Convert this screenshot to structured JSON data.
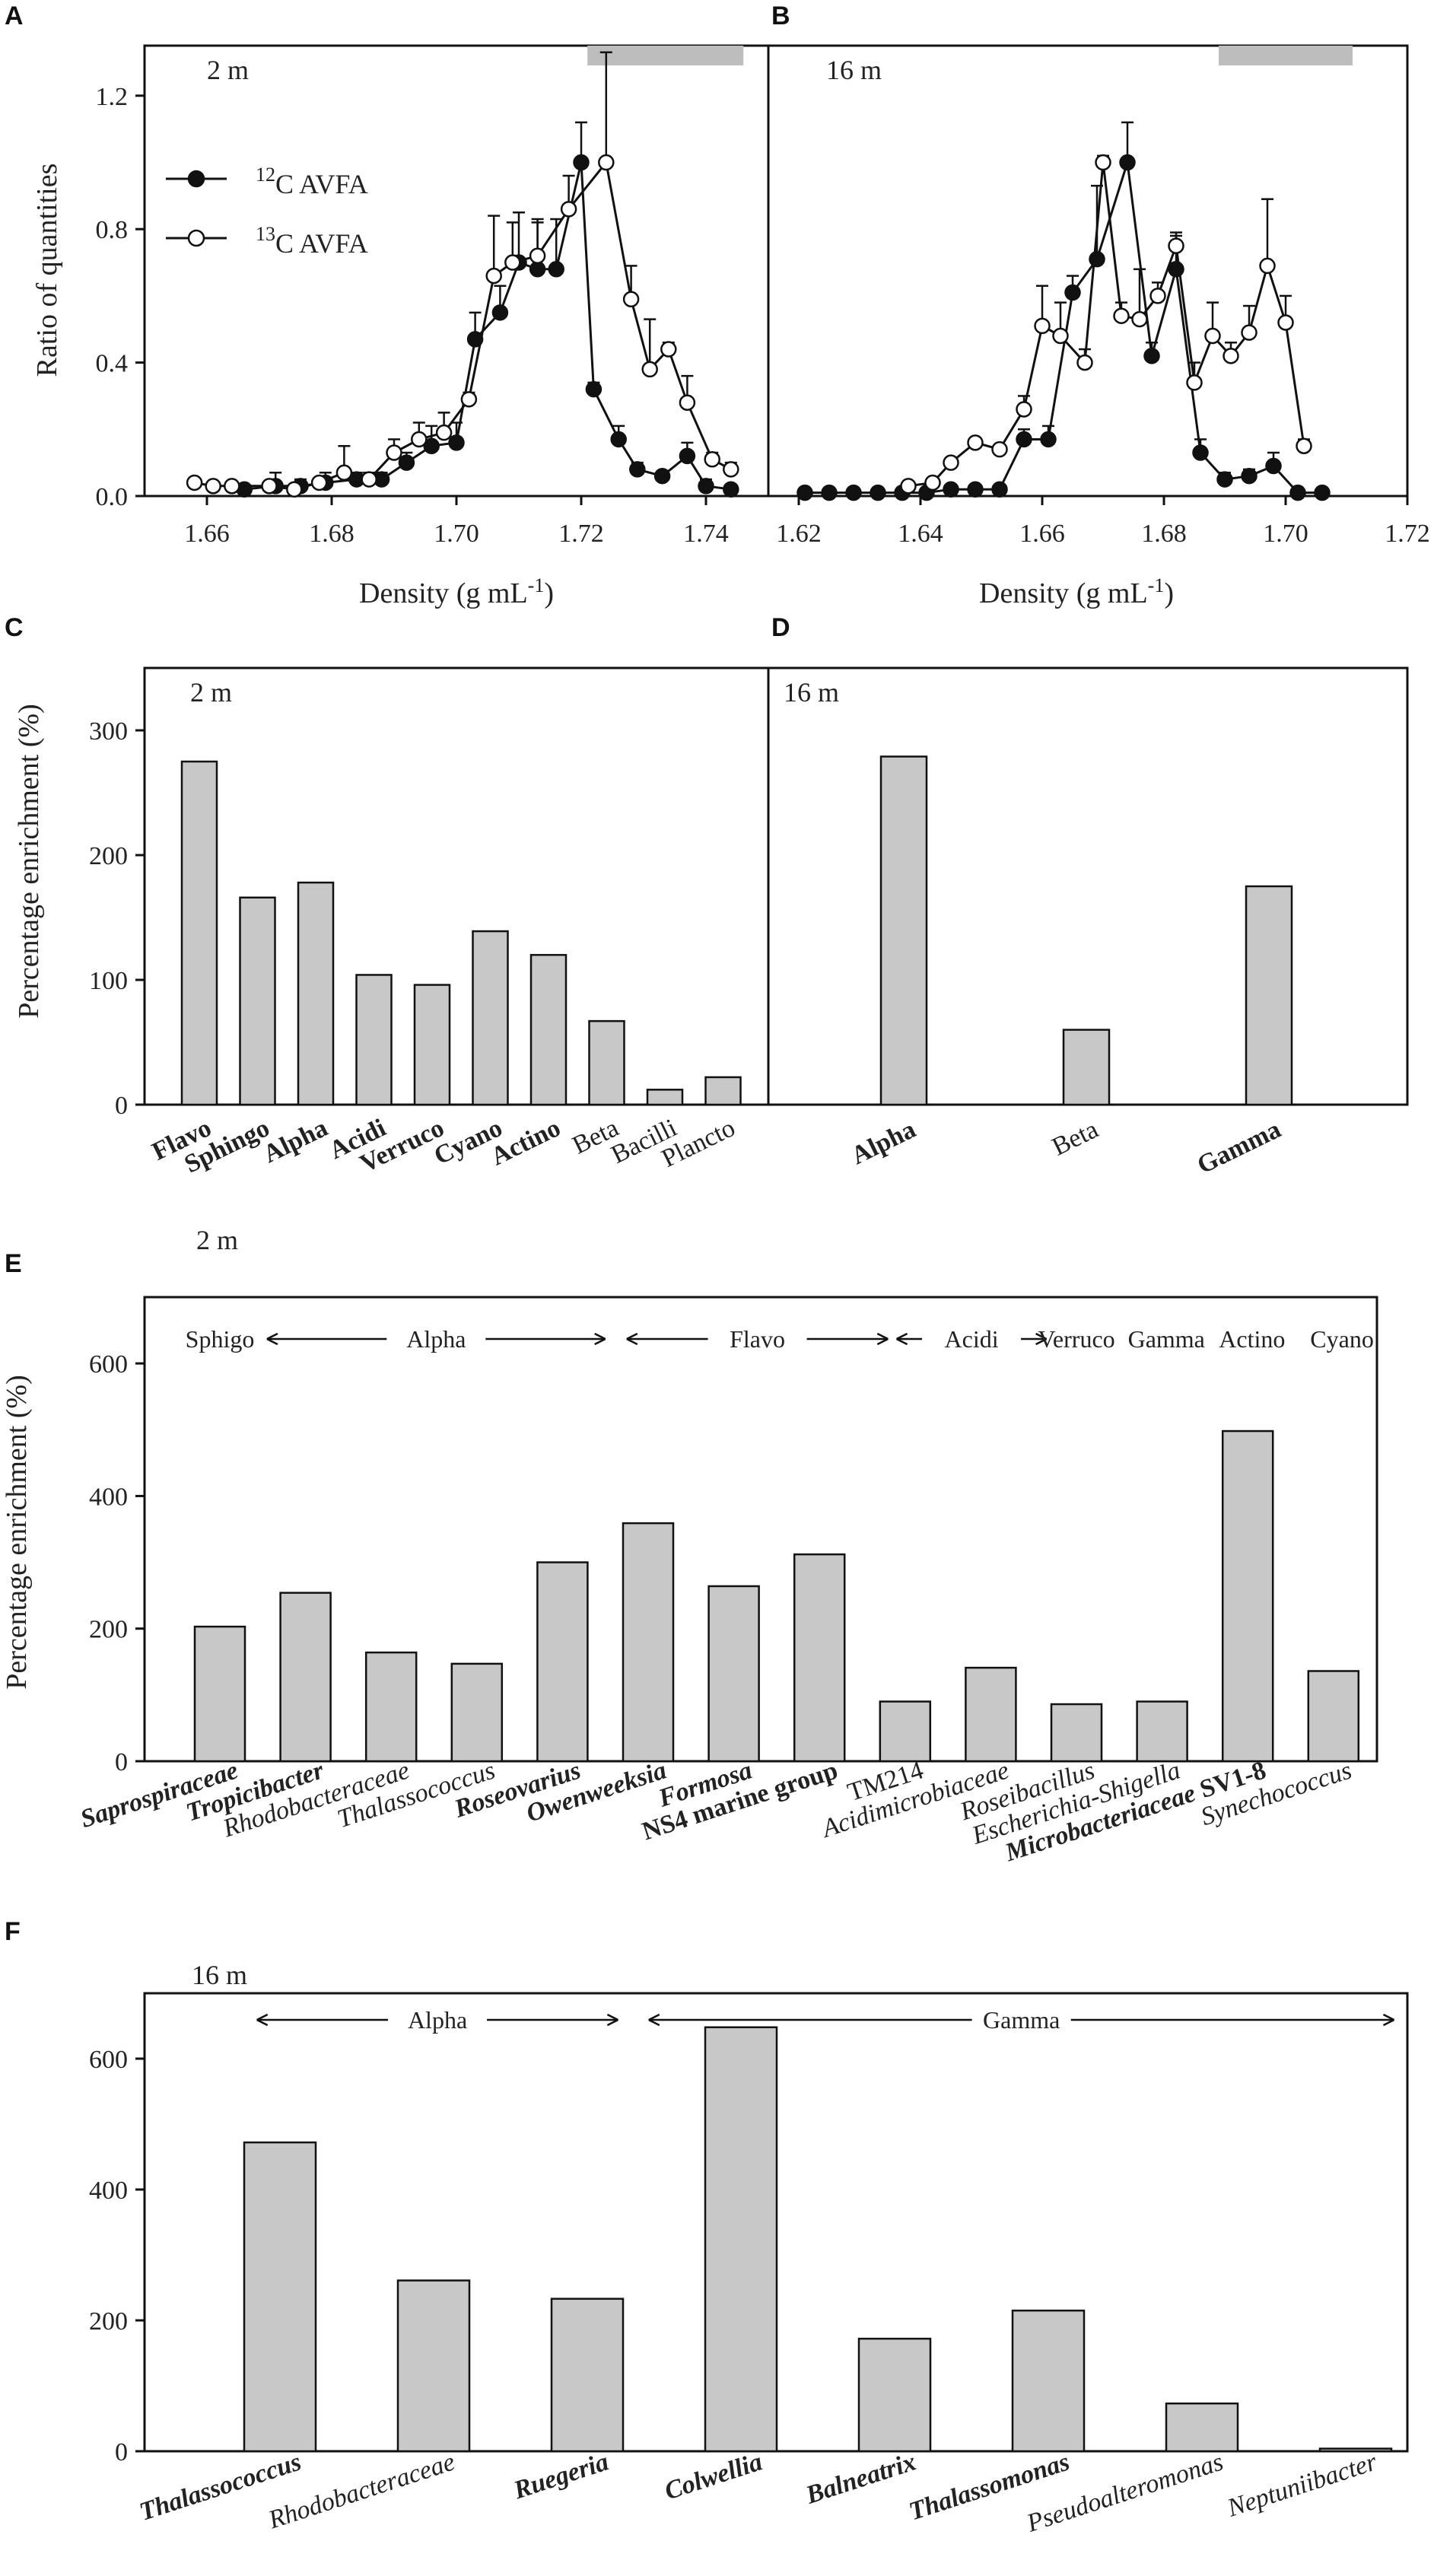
{
  "figure_name": "AVFA SIP figure",
  "chart_data": [
    {
      "id": "A",
      "panel_label": "A",
      "type": "line",
      "depth": "2 m",
      "title": "",
      "xlabel": "Density (g mL",
      "xlabel_sup": "-1",
      "xlabel_close": ")",
      "ylabel": "Ratio of quantities",
      "xlim": [
        1.65,
        1.75
      ],
      "ylim": [
        0,
        1.35
      ],
      "xticks": [
        1.66,
        1.68,
        1.7,
        1.72,
        1.74
      ],
      "xtick_labels": [
        "1.66",
        "1.68",
        "1.70",
        "1.72",
        "1.74"
      ],
      "yticks": [
        0,
        0.4,
        0.8,
        1.2
      ],
      "ytick_labels": [
        "0.0",
        "0.4",
        "0.8",
        "1.2"
      ],
      "heavy_fraction_bar": [
        1.721,
        1.746
      ],
      "legend": [
        {
          "label_sup": "12",
          "label": "C AVFA",
          "marker": "filled"
        },
        {
          "label_sup": "13",
          "label": "C AVFA",
          "marker": "open"
        }
      ],
      "series": [
        {
          "name": "12C AVFA",
          "marker": "filled",
          "x": [
            1.666,
            1.671,
            1.675,
            1.679,
            1.684,
            1.688,
            1.692,
            1.696,
            1.7,
            1.703,
            1.707,
            1.71,
            1.713,
            1.716,
            1.72,
            1.722,
            1.726,
            1.729,
            1.733,
            1.737,
            1.74,
            1.744
          ],
          "y": [
            0.02,
            0.03,
            0.03,
            0.04,
            0.05,
            0.05,
            0.1,
            0.15,
            0.16,
            0.47,
            0.55,
            0.7,
            0.68,
            0.68,
            1.0,
            0.32,
            0.17,
            0.08,
            0.06,
            0.12,
            0.03,
            0.02
          ],
          "err": [
            0.01,
            0.04,
            0.02,
            0.03,
            0.02,
            0.02,
            0.03,
            0.06,
            0.06,
            0.08,
            0.08,
            0.15,
            0.15,
            0.15,
            0.12,
            0.02,
            0.04,
            0.02,
            0.01,
            0.04,
            0.02,
            0.01
          ]
        },
        {
          "name": "13C AVFA",
          "marker": "open",
          "x": [
            1.658,
            1.661,
            1.664,
            1.67,
            1.674,
            1.678,
            1.682,
            1.686,
            1.69,
            1.694,
            1.698,
            1.702,
            1.706,
            1.709,
            1.713,
            1.718,
            1.724,
            1.728,
            1.731,
            1.734,
            1.737,
            1.741,
            1.744
          ],
          "y": [
            0.04,
            0.03,
            0.03,
            0.03,
            0.02,
            0.04,
            0.07,
            0.05,
            0.13,
            0.17,
            0.19,
            0.29,
            0.66,
            0.7,
            0.72,
            0.86,
            1.0,
            0.59,
            0.38,
            0.44,
            0.28,
            0.11,
            0.08
          ],
          "err": [
            0.01,
            0.01,
            0.01,
            0.01,
            0.01,
            0.01,
            0.08,
            0.02,
            0.04,
            0.05,
            0.06,
            0.02,
            0.18,
            0.12,
            0.1,
            0.1,
            0.33,
            0.1,
            0.15,
            0.02,
            0.08,
            0.02,
            0.02
          ]
        }
      ]
    },
    {
      "id": "B",
      "panel_label": "B",
      "type": "line",
      "depth": "16 m",
      "title": "",
      "xlabel": "Density (g mL",
      "xlabel_sup": "-1",
      "xlabel_close": ")",
      "ylabel": "",
      "xlim": [
        1.615,
        1.72
      ],
      "ylim": [
        0,
        1.35
      ],
      "xticks": [
        1.62,
        1.64,
        1.66,
        1.68,
        1.7,
        1.72
      ],
      "xtick_labels": [
        "1.62",
        "1.64",
        "1.66",
        "1.68",
        "1.70",
        "1.72"
      ],
      "yticks": [],
      "ytick_labels": [],
      "heavy_fraction_bar": [
        1.689,
        1.711
      ],
      "legend": [],
      "series": [
        {
          "name": "12C AVFA",
          "marker": "filled",
          "x": [
            1.621,
            1.625,
            1.629,
            1.633,
            1.637,
            1.641,
            1.645,
            1.649,
            1.653,
            1.657,
            1.661,
            1.665,
            1.669,
            1.674,
            1.678,
            1.682,
            1.686,
            1.69,
            1.694,
            1.698,
            1.702,
            1.706
          ],
          "y": [
            0.01,
            0.01,
            0.01,
            0.01,
            0.01,
            0.01,
            0.02,
            0.02,
            0.02,
            0.17,
            0.17,
            0.61,
            0.71,
            1.0,
            0.42,
            0.68,
            0.13,
            0.05,
            0.06,
            0.09,
            0.01,
            0.01
          ],
          "err": [
            0.01,
            0.01,
            0.01,
            0.01,
            0.01,
            0.01,
            0.01,
            0.01,
            0.01,
            0.03,
            0.04,
            0.05,
            0.22,
            0.12,
            0.04,
            0.1,
            0.04,
            0.02,
            0.02,
            0.04,
            0.01,
            0.01
          ]
        },
        {
          "name": "13C AVFA",
          "marker": "open",
          "x": [
            1.638,
            1.642,
            1.645,
            1.649,
            1.653,
            1.657,
            1.66,
            1.663,
            1.667,
            1.67,
            1.673,
            1.676,
            1.679,
            1.682,
            1.685,
            1.688,
            1.691,
            1.694,
            1.697,
            1.7,
            1.703
          ],
          "y": [
            0.03,
            0.04,
            0.1,
            0.16,
            0.14,
            0.26,
            0.51,
            0.48,
            0.4,
            1.0,
            0.54,
            0.53,
            0.6,
            0.75,
            0.34,
            0.48,
            0.42,
            0.49,
            0.69,
            0.52,
            0.15
          ],
          "err": [
            0.01,
            0.01,
            0.01,
            0.01,
            0.01,
            0.04,
            0.12,
            0.1,
            0.04,
            0.02,
            0.04,
            0.15,
            0.04,
            0.04,
            0.06,
            0.1,
            0.04,
            0.08,
            0.2,
            0.08,
            0.02
          ]
        }
      ]
    },
    {
      "id": "C",
      "panel_label": "C",
      "type": "bar",
      "depth": "2 m",
      "ylabel": "Percentage enrichment (%)",
      "xlabel": "",
      "title": "",
      "ylim": [
        0,
        350
      ],
      "yticks": [
        0,
        100,
        200,
        300
      ],
      "ytick_labels": [
        "0",
        "100",
        "200",
        "300"
      ],
      "categories": [
        "Flavo",
        "Sphingo",
        "Alpha",
        "Acidi",
        "Verruco",
        "Cyano",
        "Actino",
        "Beta",
        "Bacilli",
        "Plancto"
      ],
      "bold": [
        true,
        true,
        true,
        true,
        true,
        true,
        true,
        false,
        false,
        false
      ],
      "italic": [
        false,
        false,
        false,
        false,
        false,
        false,
        false,
        false,
        false,
        false
      ],
      "values": [
        275,
        166,
        178,
        104,
        96,
        139,
        120,
        67,
        12,
        22
      ],
      "group_labels": []
    },
    {
      "id": "D",
      "panel_label": "D",
      "type": "bar",
      "depth": "16 m",
      "ylabel": "",
      "xlabel": "",
      "title": "",
      "ylim": [
        0,
        350
      ],
      "yticks": [],
      "ytick_labels": [],
      "categories": [
        "Alpha",
        "Beta",
        "Gamma"
      ],
      "bold": [
        true,
        false,
        true
      ],
      "italic": [
        false,
        false,
        false
      ],
      "values": [
        279,
        60,
        175
      ],
      "group_labels": []
    },
    {
      "id": "E",
      "panel_label": "E",
      "type": "bar",
      "depth": "2 m",
      "ylabel": "Percentage enrichment (%)",
      "xlabel": "",
      "title": "",
      "ylim": [
        0,
        700
      ],
      "yticks": [
        0,
        200,
        400,
        600
      ],
      "ytick_labels": [
        "0",
        "200",
        "400",
        "600"
      ],
      "categories": [
        "Saprospiraceae",
        "Tropicibacter",
        "Rhodobacteraceae",
        "Thalassococcus",
        "Roseovarius",
        "Owenweeksia",
        "Formosa",
        "NS4 marine group",
        "TM214",
        "Acidimicrobiaceae",
        "Roseibacillus",
        "Escherichia-Shigella",
        "Microbacteriaceae",
        "Synechococcus"
      ],
      "category_extra": [
        "",
        "",
        "",
        "",
        "",
        "",
        "",
        "",
        "",
        "",
        "",
        "",
        "SV1-8",
        ""
      ],
      "bold": [
        true,
        true,
        false,
        false,
        true,
        true,
        true,
        true,
        false,
        false,
        false,
        false,
        true,
        false
      ],
      "italic": [
        true,
        true,
        true,
        true,
        true,
        true,
        true,
        false,
        false,
        true,
        true,
        true,
        true,
        true
      ],
      "values": [
        203,
        254,
        164,
        147,
        300,
        359,
        264,
        312,
        90,
        141,
        86,
        90,
        498,
        136
      ],
      "group_labels": [
        {
          "text": "Sphigo",
          "arrows": "none",
          "from": 0,
          "to": 0
        },
        {
          "text": "Alpha",
          "arrows": "both",
          "from": 0.55,
          "to": 4.5
        },
        {
          "text": "Flavo",
          "arrows": "both",
          "from": 4.75,
          "to": 7.8
        },
        {
          "text": "Acidi",
          "arrows": "both",
          "from": 7.9,
          "to": 9.65
        },
        {
          "text": "Verruco",
          "arrows": "none",
          "from": 10,
          "to": 10
        },
        {
          "text": "Gamma",
          "arrows": "none",
          "from": 11.05,
          "to": 11.05
        },
        {
          "text": "Actino",
          "arrows": "none",
          "from": 12.05,
          "to": 12.05
        },
        {
          "text": "Cyano",
          "arrows": "none",
          "from": 13.1,
          "to": 13.1
        }
      ]
    },
    {
      "id": "F",
      "panel_label": "F",
      "type": "bar",
      "depth": "16 m",
      "ylabel": "",
      "xlabel": "",
      "title": "",
      "ylim": [
        0,
        700
      ],
      "yticks": [
        0,
        200,
        400,
        600
      ],
      "ytick_labels": [
        "0",
        "200",
        "400",
        "600"
      ],
      "categories": [
        "Thalassococcus",
        "Rhodobacteraceae",
        "Ruegeria",
        "Colwellia",
        "Balneatrix",
        "Thalassomonas",
        "Pseudoalteromonas",
        "Neptuniibacter"
      ],
      "category_extra": [
        "",
        "",
        "",
        "",
        "",
        "",
        "",
        ""
      ],
      "bold": [
        true,
        false,
        true,
        true,
        true,
        true,
        false,
        false
      ],
      "italic": [
        true,
        true,
        true,
        true,
        true,
        true,
        true,
        true
      ],
      "values": [
        472,
        261,
        233,
        648,
        172,
        215,
        73,
        4
      ],
      "group_labels": [
        {
          "text": "Alpha",
          "arrows": "both",
          "from": -0.15,
          "to": 2.2
        },
        {
          "text": "Gamma",
          "arrows": "both",
          "from": 2.4,
          "to": 7.25
        }
      ]
    }
  ]
}
